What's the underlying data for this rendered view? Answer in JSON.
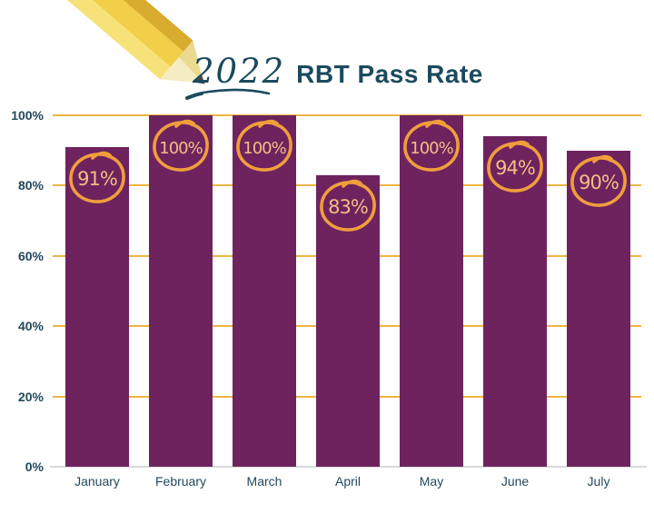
{
  "title": {
    "year": "2022",
    "text": "RBT Pass Rate"
  },
  "chart_data": {
    "type": "bar",
    "title": "2022 RBT Pass Rate",
    "categories": [
      "January",
      "February",
      "March",
      "April",
      "May",
      "June",
      "July"
    ],
    "values": [
      91,
      100,
      100,
      83,
      100,
      94,
      90
    ],
    "value_labels": [
      "91%",
      "100%",
      "100%",
      "83%",
      "100%",
      "94%",
      "90%"
    ],
    "xlabel": "",
    "ylabel": "",
    "ylim": [
      0,
      100
    ],
    "y_ticks": [
      {
        "label": "100%",
        "value": 100
      },
      {
        "label": "80%",
        "value": 80
      },
      {
        "label": "60%",
        "value": 60
      },
      {
        "label": "40%",
        "value": 40
      },
      {
        "label": "20%",
        "value": 20
      },
      {
        "label": "0%",
        "value": 0
      }
    ],
    "grid": true,
    "legend": false,
    "annotation_style": "hand-drawn orange circles around each bar value"
  },
  "colors": {
    "background": "#ffffff",
    "bar": "#6E235F",
    "gridline": "#EDB542",
    "baseline": "#D9D9D9",
    "title_text": "#1B4A5E",
    "axis_text": "#24485C",
    "ink": "#1B4A5E",
    "circle_stroke": "#F09E3C",
    "circle_text": "#F2BE82",
    "pencil_light": "#F7E27A",
    "pencil_body": "#F1CF48",
    "pencil_dark": "#D8AC2E",
    "pencil_wood": "#F6ECC4",
    "pencil_wood_shade": "#EBD98F",
    "pencil_graphite": "#4E4A41"
  }
}
